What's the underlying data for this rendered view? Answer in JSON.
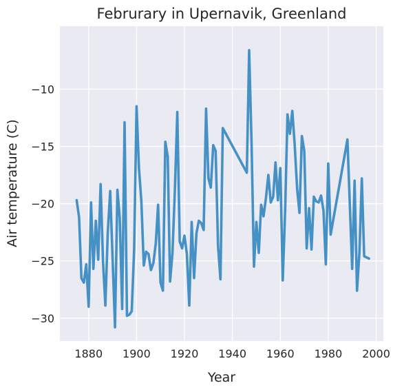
{
  "chart_data": {
    "type": "line",
    "title": "Februrary in Upernavik, Greenland",
    "xlabel": "Year",
    "ylabel": "Air temperature (C)",
    "xlim": [
      1868,
      2003
    ],
    "ylim": [
      -32.0,
      -4.5
    ],
    "xticks": [
      1880,
      1900,
      1920,
      1940,
      1960,
      1980,
      2000
    ],
    "yticks": [
      -30,
      -25,
      -20,
      -15,
      -10
    ],
    "xtick_labels": [
      "1880",
      "1900",
      "1920",
      "1940",
      "1960",
      "1980",
      "2000"
    ],
    "ytick_labels": [
      "−30",
      "−25",
      "−20",
      "−15",
      "−10"
    ],
    "grid": true,
    "background": "#eaeaf2",
    "line_color": "#4590c4",
    "series": [
      {
        "x": [
          1875,
          1876,
          1877,
          1878,
          1879,
          1880,
          1881,
          1882,
          1883,
          1884,
          1885,
          1886,
          1887,
          1888,
          1889,
          1890,
          1891,
          1892,
          1893,
          1894,
          1895,
          1896,
          1897,
          1898,
          1899,
          1900,
          1901,
          1902,
          1903,
          1904,
          1905,
          1906,
          1907,
          1908,
          1909,
          1910,
          1911,
          1912,
          1913,
          1914,
          1915,
          1916,
          1917,
          1918,
          1919,
          1920,
          1921,
          1922,
          1923,
          1924,
          1925,
          1926,
          1927,
          1928,
          1929,
          1930,
          1931,
          1932,
          1933,
          1934,
          1935,
          1936,
          1946,
          1947,
          1948,
          1949,
          1950,
          1951,
          1952,
          1953,
          1954,
          1955,
          1956,
          1957,
          1958,
          1959,
          1960,
          1961,
          1962,
          1963,
          1964,
          1965,
          1966,
          1967,
          1968,
          1969,
          1970,
          1971,
          1972,
          1973,
          1974,
          1975,
          1976,
          1977,
          1978,
          1979,
          1980,
          1981,
          1988,
          1990,
          1991,
          1992,
          1993,
          1994,
          1995,
          1997
        ],
        "y": [
          -19.7,
          -21.2,
          -26.5,
          -26.9,
          -25.3,
          -29.0,
          -19.9,
          -25.7,
          -21.5,
          -24.9,
          -18.3,
          -25.1,
          -28.9,
          -22.5,
          -18.9,
          -24.8,
          -30.8,
          -18.8,
          -21.3,
          -29.2,
          -12.9,
          -29.8,
          -29.7,
          -29.4,
          -24.0,
          -11.5,
          -16.9,
          -19.8,
          -25.4,
          -24.2,
          -24.4,
          -25.8,
          -25.2,
          -23.5,
          -20.1,
          -26.9,
          -27.6,
          -14.6,
          -15.9,
          -26.8,
          -24.3,
          -18.8,
          -12.0,
          -23.3,
          -23.9,
          -22.8,
          -24.4,
          -28.9,
          -21.6,
          -26.5,
          -22.6,
          -21.5,
          -21.7,
          -22.3,
          -11.7,
          -17.8,
          -18.6,
          -14.9,
          -15.4,
          -23.7,
          -26.6,
          -13.4,
          -17.3,
          -6.6,
          -14.7,
          -25.5,
          -21.6,
          -24.3,
          -20.1,
          -21.1,
          -19.5,
          -17.5,
          -19.9,
          -19.4,
          -16.4,
          -19.7,
          -16.9,
          -26.7,
          -20.6,
          -12.2,
          -13.9,
          -11.9,
          -14.9,
          -18.7,
          -20.8,
          -14.1,
          -15.4,
          -23.9,
          -20.4,
          -24.0,
          -19.4,
          -19.8,
          -19.9,
          -19.3,
          -20.6,
          -25.3,
          -16.5,
          -22.7,
          -14.4,
          -25.7,
          -18.0,
          -27.6,
          -24.3,
          -17.8,
          -24.6,
          -24.8
        ]
      }
    ]
  }
}
